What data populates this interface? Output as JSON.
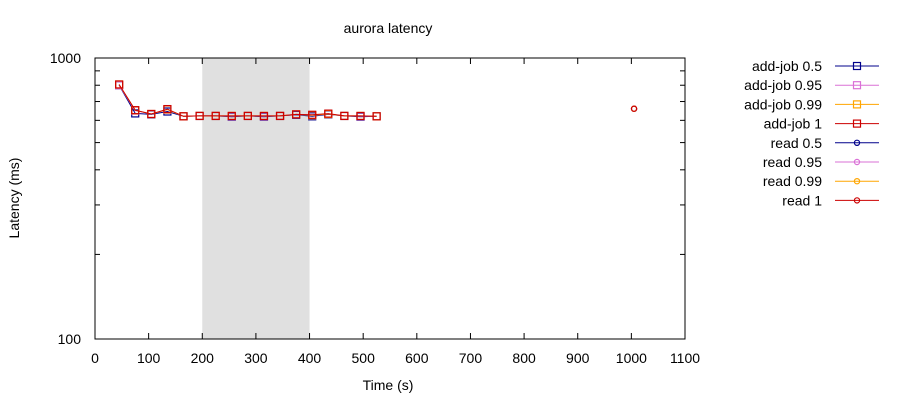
{
  "chart_data": {
    "type": "line",
    "title": "aurora latency",
    "xlabel": "Time (s)",
    "ylabel": "Latency (ms)",
    "xlim": [
      0,
      1100
    ],
    "ylim": [
      100,
      1000
    ],
    "yscale": "log",
    "xticks": [
      0,
      100,
      200,
      300,
      400,
      500,
      600,
      700,
      800,
      900,
      1000,
      1100
    ],
    "yticks": [
      100,
      1000
    ],
    "grid": false,
    "legend_position": "outside-right",
    "shaded_region": {
      "x_start": 200,
      "x_end": 400,
      "color": "#e0e0e0"
    },
    "series": [
      {
        "name": "add-job 0.5",
        "color": "#00008b",
        "marker": "square",
        "x": [
          45,
          75,
          105,
          135,
          165,
          195,
          225,
          255,
          285,
          315,
          345,
          375,
          405,
          435,
          465,
          495,
          525
        ],
        "y": [
          800,
          635,
          630,
          645,
          620,
          622,
          622,
          618,
          622,
          618,
          622,
          628,
          620,
          630,
          622,
          618,
          620
        ]
      },
      {
        "name": "add-job 0.95",
        "color": "#da70d6",
        "marker": "square",
        "x": [
          45,
          75,
          105,
          135,
          165,
          195,
          225,
          255,
          285,
          315,
          345,
          375,
          405,
          435,
          465,
          495,
          525
        ],
        "y": [
          800,
          650,
          632,
          655,
          620,
          622,
          622,
          620,
          622,
          620,
          622,
          630,
          625,
          632,
          622,
          620,
          620
        ]
      },
      {
        "name": "add-job 0.99",
        "color": "#ffa500",
        "marker": "square",
        "x": [
          45,
          75,
          105,
          135,
          165,
          195,
          225,
          255,
          285,
          315,
          345,
          375,
          405,
          435,
          465,
          495,
          525
        ],
        "y": [
          805,
          652,
          632,
          656,
          620,
          622,
          622,
          622,
          622,
          622,
          622,
          630,
          626,
          632,
          622,
          622,
          620
        ]
      },
      {
        "name": "add-job 1",
        "color": "#cc0000",
        "marker": "square",
        "x": [
          45,
          75,
          105,
          135,
          165,
          195,
          225,
          255,
          285,
          315,
          345,
          375,
          405,
          435,
          465,
          495,
          525
        ],
        "y": [
          805,
          652,
          632,
          658,
          620,
          622,
          622,
          622,
          622,
          622,
          622,
          630,
          628,
          634,
          622,
          622,
          620
        ]
      },
      {
        "name": "read 0.5",
        "color": "#00008b",
        "marker": "circle",
        "x": [
          1005
        ],
        "y": [
          660
        ]
      },
      {
        "name": "read 0.95",
        "color": "#da70d6",
        "marker": "circle",
        "x": [
          1005
        ],
        "y": [
          660
        ]
      },
      {
        "name": "read 0.99",
        "color": "#ffa500",
        "marker": "circle",
        "x": [
          1005
        ],
        "y": [
          660
        ]
      },
      {
        "name": "read 1",
        "color": "#cc0000",
        "marker": "circle",
        "x": [
          1005
        ],
        "y": [
          660
        ]
      }
    ]
  }
}
